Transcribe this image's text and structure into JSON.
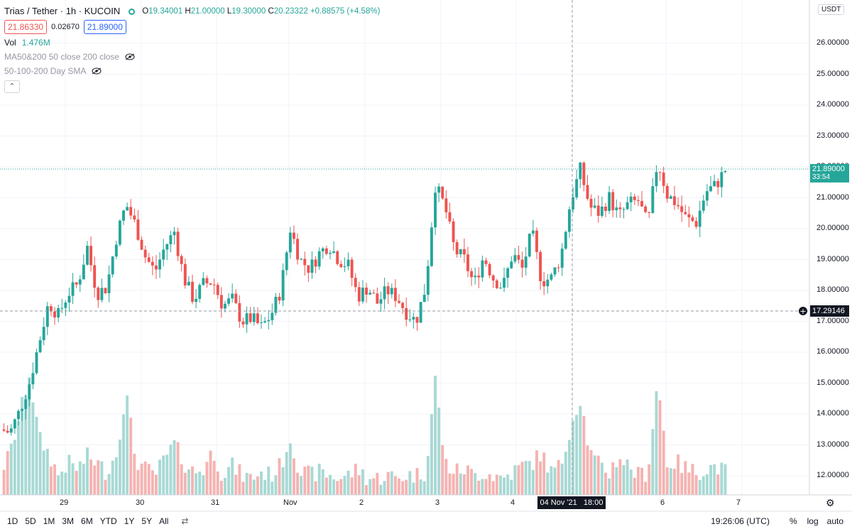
{
  "header": {
    "symbol": "Trias / Tether · 1h · KUCOIN",
    "ohlc": [
      {
        "k": "O",
        "v": "19.34001"
      },
      {
        "k": "H",
        "v": "21.00000"
      },
      {
        "k": "L",
        "v": "19.30000"
      },
      {
        "k": "C",
        "v": "20.23322"
      }
    ],
    "change": "+0.88575 (+4.58%)",
    "bid": "21.86330",
    "spread": "0.02670",
    "ask": "21.89000",
    "vol_label": "Vol",
    "vol_value": "1.476M",
    "indicator1": "MA50&200 50 close 200 close",
    "indicator2": "50-100-200 Day SMA",
    "collapse": "⌃"
  },
  "currency": "USDT",
  "price_axis": {
    "ticks": [
      "26.00000",
      "25.00000",
      "24.00000",
      "23.00000",
      "22.00000",
      "21.00000",
      "20.00000",
      "19.00000",
      "18.00000",
      "17.00000",
      "16.00000",
      "15.00000",
      "14.00000",
      "13.00000",
      "12.00000"
    ],
    "current_price": "21.89000",
    "countdown": "33:54",
    "crosshair_price": "17.29146"
  },
  "time_axis": {
    "ticks": [
      "29",
      "30",
      "31",
      "Nov",
      "2",
      "3",
      "4",
      "6",
      "7"
    ],
    "crosshair_time": "04 Nov '21   18:00"
  },
  "toolbar": {
    "ranges": [
      "1D",
      "5D",
      "1M",
      "3M",
      "6M",
      "YTD",
      "1Y",
      "5Y",
      "All"
    ],
    "clock": "19:26:06 (UTC)",
    "percent": "%",
    "log": "log",
    "auto": "auto"
  },
  "colors": {
    "up": "#26a69a",
    "down": "#ef5350",
    "up_volume": "#a8d9d4",
    "down_volume": "#f5b3b1"
  },
  "chart_data": {
    "type": "candlestick",
    "title": "Trias / Tether · 1h · KUCOIN",
    "ylim": [
      11.5,
      26.8
    ],
    "x_labels": [
      "29",
      "30",
      "31",
      "Nov",
      "2",
      "3",
      "4",
      "6",
      "7"
    ],
    "summary_path": [
      13.5,
      13.4,
      14.1,
      15.0,
      16.3,
      17.6,
      17.2,
      17.9,
      18.2,
      19.4,
      17.9,
      18.1,
      19.7,
      20.8,
      20.1,
      19.1,
      18.6,
      19.4,
      19.9,
      18.4,
      17.7,
      18.2,
      18.3,
      17.5,
      17.7,
      17.0,
      17.1,
      16.8,
      17.2,
      18.0,
      20.0,
      19.0,
      18.7,
      19.2,
      19.5,
      19.0,
      18.8,
      17.8,
      18.1,
      17.6,
      18.0,
      17.8,
      17.3,
      17.0,
      18.1,
      21.4,
      20.7,
      19.3,
      19.0,
      18.2,
      19.1,
      18.4,
      18.1,
      19.2,
      18.7,
      19.9,
      18.3,
      18.4,
      19.1,
      20.9,
      21.9,
      20.7,
      20.5,
      21.0,
      20.4,
      20.8,
      20.9,
      20.1,
      22.2,
      21.1,
      20.8,
      20.3,
      20.2,
      21.2,
      21.4,
      21.9
    ],
    "volume_path": [
      12.0,
      12.6,
      13.8,
      15.2,
      13.1,
      12.6,
      11.9,
      12.3,
      12.1,
      12.5,
      12.3,
      12.0,
      12.6,
      14.6,
      12.4,
      12.1,
      11.9,
      12.4,
      12.9,
      12.3,
      12.0,
      12.1,
      12.7,
      11.9,
      12.2,
      11.9,
      11.8,
      12.0,
      11.9,
      12.2,
      13.1,
      12.0,
      11.9,
      12.0,
      11.9,
      11.8,
      11.9,
      12.1,
      11.8,
      11.8,
      11.9,
      11.8,
      11.9,
      11.9,
      12.0,
      15.0,
      12.3,
      12.0,
      12.1,
      11.9,
      12.0,
      11.9,
      11.8,
      12.0,
      12.2,
      12.3,
      12.6,
      12.0,
      12.2,
      13.5,
      14.4,
      12.6,
      12.2,
      12.0,
      12.5,
      12.2,
      11.9,
      12.0,
      15.0,
      12.3,
      12.3,
      12.1,
      12.0,
      12.1,
      12.2,
      12.0
    ]
  }
}
